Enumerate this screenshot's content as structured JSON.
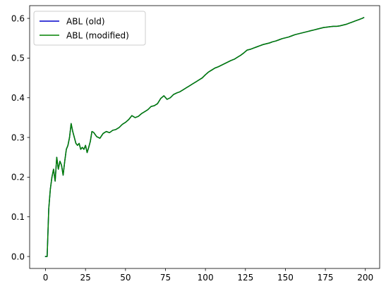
{
  "chart_data": {
    "type": "line",
    "title": "",
    "xlabel": "",
    "ylabel": "",
    "xlim": [
      -9.95,
      208.95
    ],
    "ylim": [
      -0.0301,
      0.6321
    ],
    "xticks": [
      0,
      25,
      50,
      75,
      100,
      125,
      150,
      175,
      200
    ],
    "yticks": [
      0.0,
      0.1,
      0.2,
      0.3,
      0.4,
      0.5,
      0.6
    ],
    "xtick_labels": [
      "0",
      "25",
      "50",
      "75",
      "100",
      "125",
      "150",
      "175",
      "200"
    ],
    "ytick_labels": [
      "0.0",
      "0.1",
      "0.2",
      "0.3",
      "0.4",
      "0.5",
      "0.6"
    ],
    "grid": false,
    "legend_position": "upper-left",
    "series": [
      {
        "name": "ABL (old)",
        "color": "#0000cc",
        "x": [
          0,
          1,
          2,
          3,
          4,
          5,
          6,
          7,
          8,
          9,
          10,
          11,
          12,
          13,
          14,
          15,
          16,
          17,
          18,
          19,
          20,
          21,
          22,
          23,
          24,
          25,
          26,
          27,
          28,
          29,
          30,
          32,
          34,
          36,
          38,
          40,
          42,
          44,
          46,
          48,
          50,
          52,
          54,
          56,
          58,
          60,
          62,
          64,
          66,
          68,
          70,
          72,
          74,
          76,
          78,
          80,
          82,
          84,
          86,
          88,
          90,
          92,
          94,
          96,
          98,
          100,
          102,
          104,
          106,
          108,
          110,
          112,
          114,
          116,
          118,
          120,
          122,
          124,
          126,
          128,
          130,
          132,
          134,
          136,
          138,
          140,
          142,
          144,
          146,
          148,
          150,
          152,
          154,
          156,
          158,
          160,
          162,
          164,
          166,
          168,
          170,
          172,
          174,
          176,
          178,
          180,
          182,
          184,
          186,
          188,
          190,
          192,
          194,
          196,
          198,
          199
        ],
        "y": [
          0.0,
          0.0,
          0.12,
          0.17,
          0.2,
          0.22,
          0.19,
          0.25,
          0.22,
          0.24,
          0.23,
          0.205,
          0.24,
          0.27,
          0.28,
          0.3,
          0.335,
          0.315,
          0.3,
          0.285,
          0.28,
          0.285,
          0.27,
          0.275,
          0.27,
          0.28,
          0.262,
          0.275,
          0.29,
          0.315,
          0.313,
          0.302,
          0.298,
          0.31,
          0.315,
          0.312,
          0.318,
          0.32,
          0.325,
          0.333,
          0.338,
          0.345,
          0.355,
          0.35,
          0.353,
          0.36,
          0.365,
          0.37,
          0.378,
          0.38,
          0.385,
          0.398,
          0.405,
          0.396,
          0.4,
          0.408,
          0.412,
          0.415,
          0.42,
          0.425,
          0.43,
          0.435,
          0.44,
          0.445,
          0.45,
          0.458,
          0.465,
          0.47,
          0.475,
          0.478,
          0.482,
          0.486,
          0.49,
          0.494,
          0.497,
          0.502,
          0.507,
          0.513,
          0.52,
          0.522,
          0.525,
          0.528,
          0.531,
          0.534,
          0.536,
          0.538,
          0.541,
          0.543,
          0.546,
          0.549,
          0.551,
          0.553,
          0.556,
          0.559,
          0.561,
          0.563,
          0.565,
          0.567,
          0.569,
          0.571,
          0.573,
          0.575,
          0.577,
          0.578,
          0.579,
          0.58,
          0.58,
          0.581,
          0.583,
          0.585,
          0.588,
          0.591,
          0.594,
          0.597,
          0.6,
          0.602
        ]
      },
      {
        "name": "ABL (modified)",
        "color": "#008000",
        "x": [
          0,
          1,
          2,
          3,
          4,
          5,
          6,
          7,
          8,
          9,
          10,
          11,
          12,
          13,
          14,
          15,
          16,
          17,
          18,
          19,
          20,
          21,
          22,
          23,
          24,
          25,
          26,
          27,
          28,
          29,
          30,
          32,
          34,
          36,
          38,
          40,
          42,
          44,
          46,
          48,
          50,
          52,
          54,
          56,
          58,
          60,
          62,
          64,
          66,
          68,
          70,
          72,
          74,
          76,
          78,
          80,
          82,
          84,
          86,
          88,
          90,
          92,
          94,
          96,
          98,
          100,
          102,
          104,
          106,
          108,
          110,
          112,
          114,
          116,
          118,
          120,
          122,
          124,
          126,
          128,
          130,
          132,
          134,
          136,
          138,
          140,
          142,
          144,
          146,
          148,
          150,
          152,
          154,
          156,
          158,
          160,
          162,
          164,
          166,
          168,
          170,
          172,
          174,
          176,
          178,
          180,
          182,
          184,
          186,
          188,
          190,
          192,
          194,
          196,
          198,
          199
        ],
        "y": [
          0.0,
          0.0,
          0.12,
          0.17,
          0.2,
          0.22,
          0.19,
          0.25,
          0.22,
          0.24,
          0.23,
          0.205,
          0.24,
          0.27,
          0.28,
          0.3,
          0.335,
          0.315,
          0.3,
          0.285,
          0.28,
          0.285,
          0.27,
          0.275,
          0.27,
          0.28,
          0.262,
          0.275,
          0.29,
          0.315,
          0.313,
          0.302,
          0.298,
          0.31,
          0.315,
          0.312,
          0.318,
          0.32,
          0.325,
          0.333,
          0.338,
          0.345,
          0.355,
          0.35,
          0.353,
          0.36,
          0.365,
          0.37,
          0.378,
          0.38,
          0.385,
          0.398,
          0.405,
          0.396,
          0.4,
          0.408,
          0.412,
          0.415,
          0.42,
          0.425,
          0.43,
          0.435,
          0.44,
          0.445,
          0.45,
          0.458,
          0.465,
          0.47,
          0.475,
          0.478,
          0.482,
          0.486,
          0.49,
          0.494,
          0.497,
          0.502,
          0.507,
          0.513,
          0.52,
          0.522,
          0.525,
          0.528,
          0.531,
          0.534,
          0.536,
          0.538,
          0.541,
          0.543,
          0.546,
          0.549,
          0.551,
          0.553,
          0.556,
          0.559,
          0.561,
          0.563,
          0.565,
          0.567,
          0.569,
          0.571,
          0.573,
          0.575,
          0.577,
          0.578,
          0.579,
          0.58,
          0.58,
          0.581,
          0.583,
          0.585,
          0.588,
          0.591,
          0.594,
          0.597,
          0.6,
          0.602
        ]
      }
    ]
  }
}
